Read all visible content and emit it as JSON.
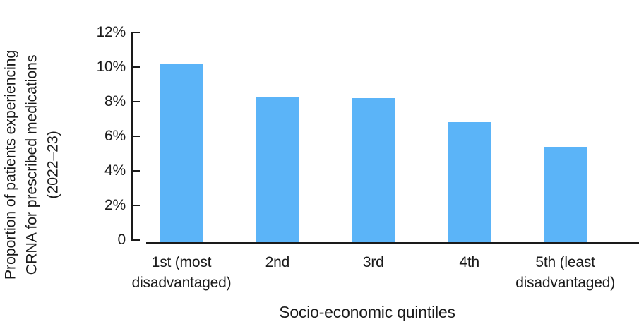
{
  "chart_data": {
    "type": "bar",
    "title": "",
    "categories": [
      "1st (most\ndisadvantaged)",
      "2nd",
      "3rd",
      "4th",
      "5th (least\ndisadvantaged)"
    ],
    "values": [
      10.2,
      8.3,
      8.2,
      6.8,
      5.4
    ],
    "xlabel": "Socio-economic quintiles",
    "ylabel": "Proportion of patients experiencing CRNA for prescribed medications (2022–23)",
    "ylabel_lines": [
      "Proportion of patients experiencing",
      "CRNA for prescribed medications",
      "(2022–23)"
    ],
    "y_ticks": [
      "12%",
      "10%",
      "8%",
      "6%",
      "4%",
      "2%",
      "0"
    ],
    "y_tick_values": [
      12,
      10,
      8,
      6,
      4,
      2,
      0
    ],
    "ylim": [
      0,
      12
    ],
    "grid": false,
    "legend": null,
    "colors": {
      "bar": "#5BB4F8",
      "axis": "#1a1a1a",
      "text": "#1a1a1a"
    }
  }
}
